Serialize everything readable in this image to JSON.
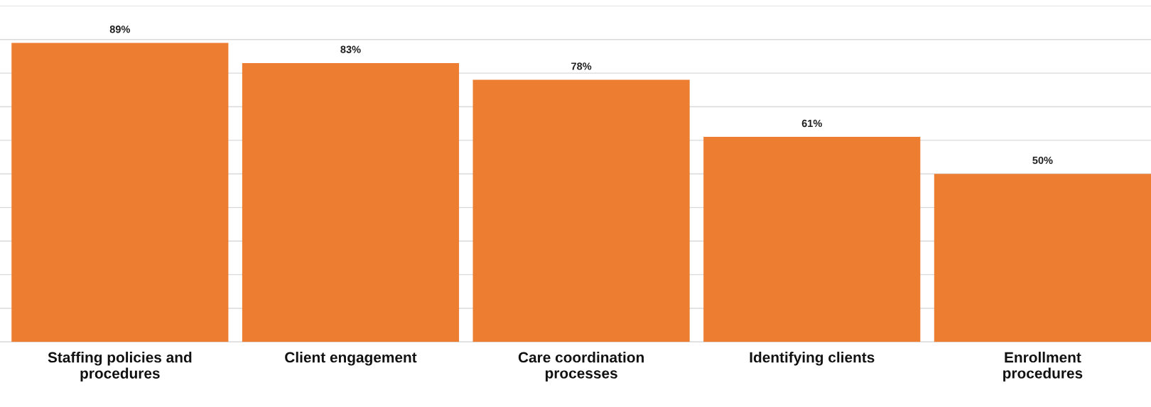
{
  "chart_data": {
    "type": "bar",
    "categories": [
      "Staffing policies and\nprocedures",
      "Client engagement",
      "Care coordination\nprocesses",
      "Identifying clients",
      "Enrollment\nprocedures"
    ],
    "values": [
      89,
      83,
      78,
      61,
      50
    ],
    "color": "#ed7d31",
    "data_labels": true,
    "value_labels": [
      "89%",
      "83%",
      "78%",
      "61%",
      "50%"
    ],
    "ylim": [
      0,
      100
    ],
    "yticks": [
      {
        "value": 0,
        "label": null
      },
      {
        "value": 10,
        "label": null
      },
      {
        "value": 20,
        "label": null
      },
      {
        "value": 30,
        "label": null
      },
      {
        "value": 40,
        "label": null
      },
      {
        "value": 50,
        "label": null
      },
      {
        "value": 60,
        "label": null
      },
      {
        "value": 70,
        "label": null
      },
      {
        "value": 80,
        "label": null
      },
      {
        "value": 90,
        "label": null
      },
      {
        "value": 100,
        "label": null
      }
    ],
    "grid": "y",
    "legend": false
  }
}
